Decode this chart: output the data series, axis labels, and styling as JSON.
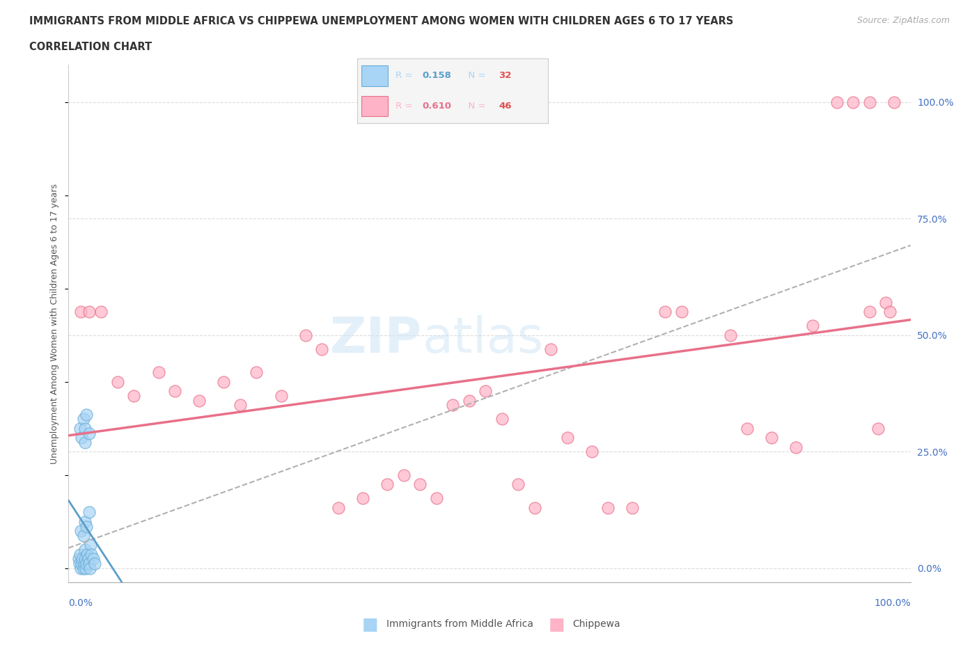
{
  "title_line1": "IMMIGRANTS FROM MIDDLE AFRICA VS CHIPPEWA UNEMPLOYMENT AMONG WOMEN WITH CHILDREN AGES 6 TO 17 YEARS",
  "title_line2": "CORRELATION CHART",
  "source": "Source: ZipAtlas.com",
  "ylabel": "Unemployment Among Women with Children Ages 6 to 17 years",
  "ytick_labels": [
    "0.0%",
    "25.0%",
    "50.0%",
    "75.0%",
    "100.0%"
  ],
  "ytick_positions": [
    0,
    25,
    50,
    75,
    100
  ],
  "xtick_left": "0.0%",
  "xtick_right": "100.0%",
  "blue_points": [
    [
      0.2,
      2
    ],
    [
      0.3,
      1
    ],
    [
      0.4,
      3
    ],
    [
      0.5,
      0
    ],
    [
      0.6,
      1
    ],
    [
      0.7,
      2
    ],
    [
      0.8,
      0
    ],
    [
      0.9,
      1
    ],
    [
      1.0,
      2
    ],
    [
      1.0,
      4
    ],
    [
      1.1,
      0
    ],
    [
      1.2,
      1
    ],
    [
      1.3,
      3
    ],
    [
      1.4,
      2
    ],
    [
      1.5,
      1
    ],
    [
      1.6,
      0
    ],
    [
      1.7,
      5
    ],
    [
      1.8,
      3
    ],
    [
      2.0,
      2
    ],
    [
      2.2,
      1
    ],
    [
      0.5,
      8
    ],
    [
      0.8,
      7
    ],
    [
      1.0,
      10
    ],
    [
      1.2,
      9
    ],
    [
      1.5,
      12
    ],
    [
      0.4,
      30
    ],
    [
      0.6,
      28
    ],
    [
      0.8,
      32
    ],
    [
      1.0,
      30
    ],
    [
      1.2,
      33
    ],
    [
      1.0,
      27
    ],
    [
      1.5,
      29
    ]
  ],
  "blue_R": 0.158,
  "blue_N": 32,
  "blue_color": "#a8d4f5",
  "blue_edge_color": "#6aaed6",
  "blue_line_color": "#5b9ec9",
  "pink_points": [
    [
      0.5,
      55
    ],
    [
      1.5,
      55
    ],
    [
      3.0,
      55
    ],
    [
      5.0,
      40
    ],
    [
      7.0,
      37
    ],
    [
      10.0,
      42
    ],
    [
      12.0,
      38
    ],
    [
      15.0,
      36
    ],
    [
      18.0,
      40
    ],
    [
      20.0,
      35
    ],
    [
      22.0,
      42
    ],
    [
      25.0,
      37
    ],
    [
      28.0,
      50
    ],
    [
      30.0,
      47
    ],
    [
      32.0,
      13
    ],
    [
      35.0,
      15
    ],
    [
      38.0,
      18
    ],
    [
      40.0,
      20
    ],
    [
      42.0,
      18
    ],
    [
      44.0,
      15
    ],
    [
      46.0,
      35
    ],
    [
      48.0,
      36
    ],
    [
      50.0,
      38
    ],
    [
      52.0,
      32
    ],
    [
      54.0,
      18
    ],
    [
      56.0,
      13
    ],
    [
      58.0,
      47
    ],
    [
      60.0,
      28
    ],
    [
      63.0,
      25
    ],
    [
      65.0,
      13
    ],
    [
      68.0,
      13
    ],
    [
      72.0,
      55
    ],
    [
      74.0,
      55
    ],
    [
      80.0,
      50
    ],
    [
      82.0,
      30
    ],
    [
      85.0,
      28
    ],
    [
      88.0,
      26
    ],
    [
      90.0,
      52
    ],
    [
      93.0,
      100
    ],
    [
      95.0,
      100
    ],
    [
      97.0,
      100
    ],
    [
      97.0,
      55
    ],
    [
      98.0,
      30
    ],
    [
      99.0,
      57
    ],
    [
      99.5,
      55
    ],
    [
      100.0,
      100
    ]
  ],
  "pink_R": 0.61,
  "pink_N": 46,
  "pink_color": "#ffb3c6",
  "pink_edge_color": "#e8708a",
  "pink_line_color": "#e8708a",
  "dashed_line_color": "#b0b0b0",
  "background_color": "#ffffff",
  "grid_color": "#d8d8d8",
  "title_color": "#333333",
  "axis_label_color": "#4472c4",
  "legend_blue_r": "0.158",
  "legend_blue_n": "32",
  "legend_pink_r": "0.610",
  "legend_pink_n": "46",
  "bottom_legend_label1": "Immigrants from Middle Africa",
  "bottom_legend_label2": "Chippewa"
}
